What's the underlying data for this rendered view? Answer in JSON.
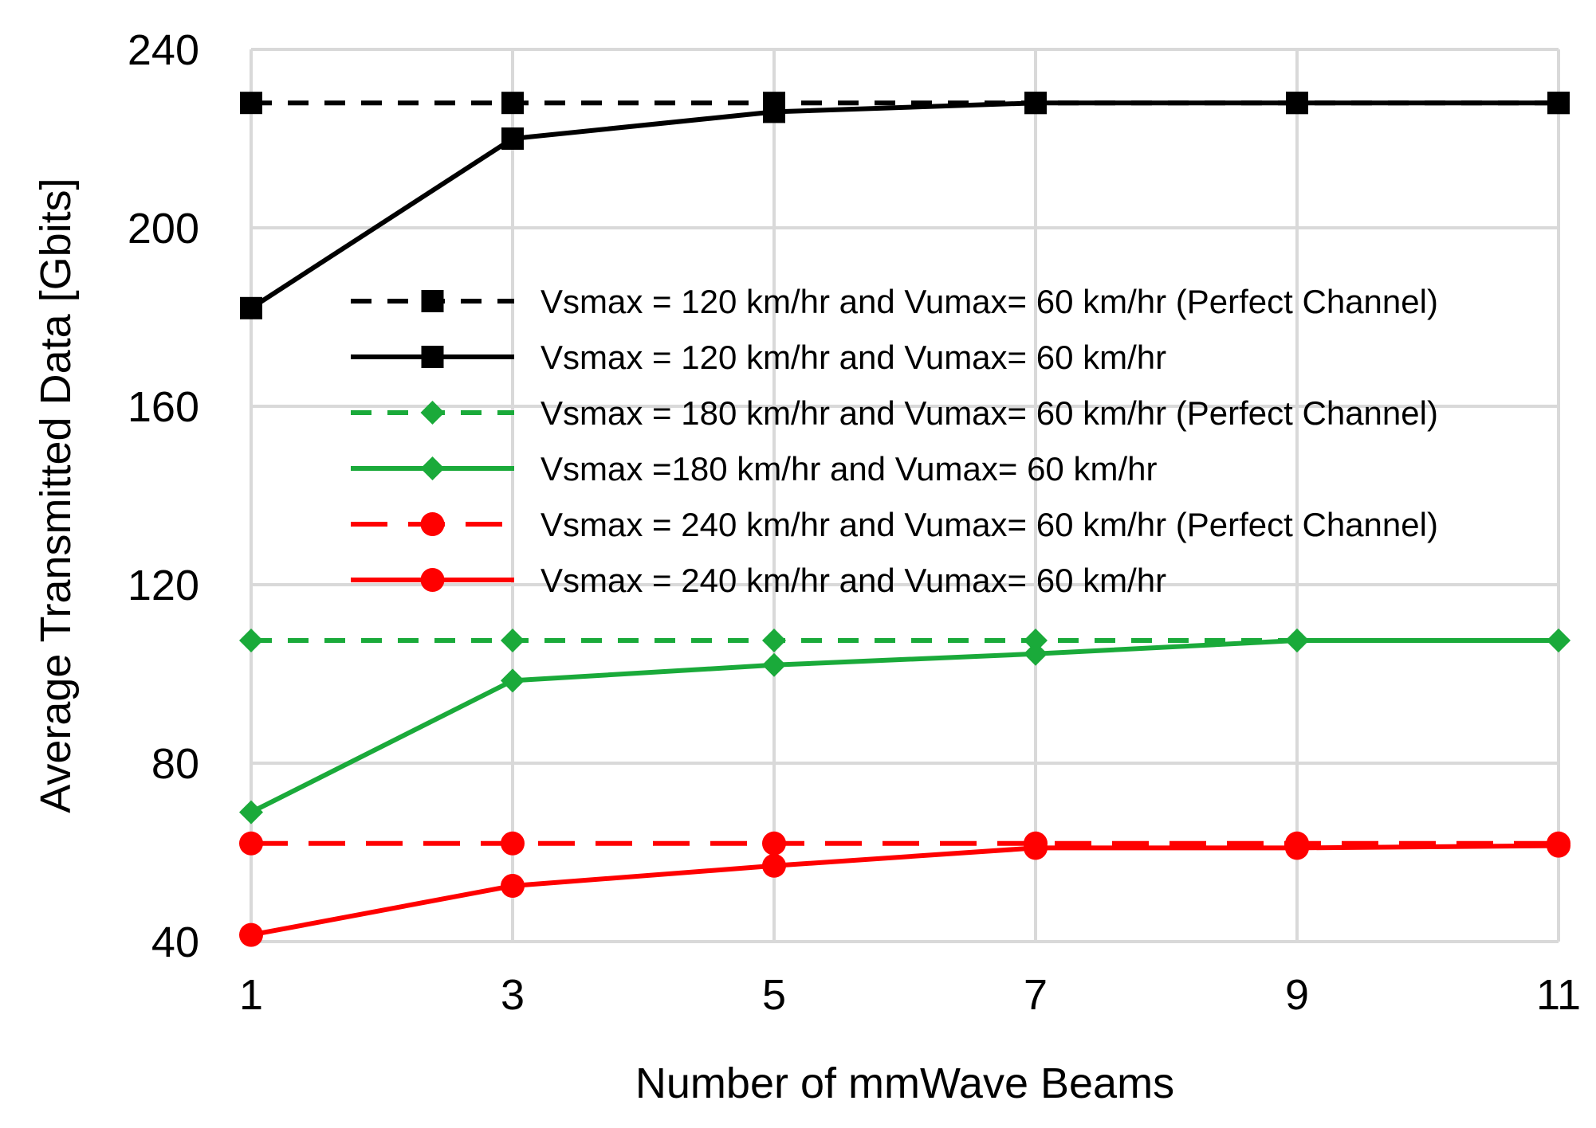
{
  "chart_data": {
    "type": "line",
    "title": "",
    "xlabel": "Number of mmWave Beams",
    "ylabel": "Average Transmitted Data [Gbits]",
    "x": [
      1,
      3,
      5,
      7,
      9,
      11
    ],
    "x_ticks": [
      "1",
      "3",
      "5",
      "7",
      "9",
      "11"
    ],
    "ylim": [
      40,
      240
    ],
    "y_ticks": [
      "40",
      "80",
      "120",
      "160",
      "200",
      "240"
    ],
    "grid": true,
    "legend_position": "center-right",
    "series": [
      {
        "name": "Vsmax = 120 km/hr and Vumax= 60  km/hr (Perfect Channel)",
        "values": [
          228,
          228,
          228,
          228,
          228,
          228
        ],
        "color": "#000000",
        "dash": "dashed",
        "marker": "square"
      },
      {
        "name": "Vsmax = 120 km/hr and Vumax= 60  km/hr",
        "values": [
          182,
          220,
          226,
          228,
          228,
          228
        ],
        "color": "#000000",
        "dash": "solid",
        "marker": "square"
      },
      {
        "name": "Vsmax = 180 km/hr and Vumax= 60  km/hr (Perfect Channel)",
        "values": [
          107.5,
          107.5,
          107.5,
          107.5,
          107.5,
          107.5
        ],
        "color": "#1aaa3a",
        "dash": "dashed",
        "marker": "diamond"
      },
      {
        "name": "Vsmax =180 km/hr and Vumax= 60 km/hr",
        "values": [
          69,
          98.5,
          102,
          104.5,
          107.5,
          107.5
        ],
        "color": "#1aaa3a",
        "dash": "solid",
        "marker": "diamond"
      },
      {
        "name": "Vsmax = 240 km/hr and Vumax= 60  km/hr (Perfect Channel)",
        "values": [
          62,
          62,
          62,
          62,
          62,
          62
        ],
        "color": "#ff0000",
        "dash": "longdash",
        "marker": "circle"
      },
      {
        "name": "Vsmax = 240 km/hr and Vumax= 60 km/hr",
        "values": [
          41.5,
          52.5,
          57,
          61,
          61,
          61.5
        ],
        "color": "#ff0000",
        "dash": "solid",
        "marker": "circle"
      }
    ]
  }
}
